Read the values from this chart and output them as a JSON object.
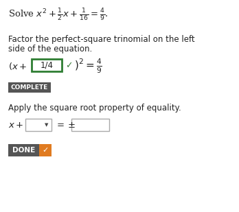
{
  "bg_color": "#ffffff",
  "checkmark_color": "#3a7d3a",
  "input_border_color": "#2e7d32",
  "complete_bg": "#555555",
  "complete_text": "COMPLETE",
  "complete_text_color": "#ffffff",
  "apply_text": "Apply the square root property of equality.",
  "done_bg": "#555555",
  "done_orange": "#e07b20",
  "done_text": "DONE",
  "text_color": "#222222",
  "box_edge_color": "#aaaaaa",
  "fig_w": 3.48,
  "fig_h": 3.09,
  "dpi": 100
}
